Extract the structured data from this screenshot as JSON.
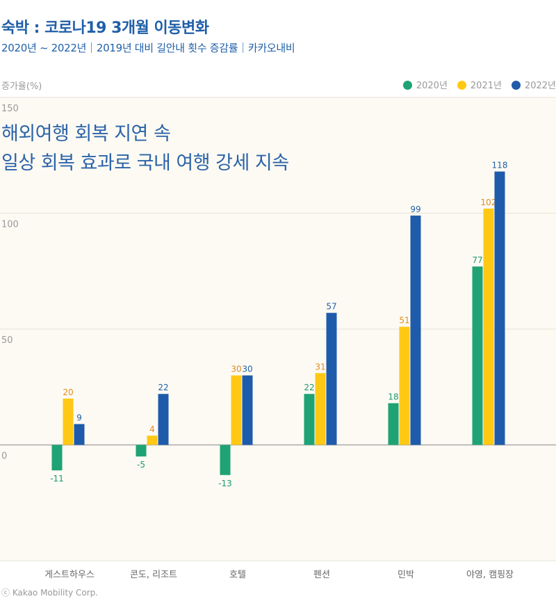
{
  "header": {
    "title": "숙박 : 코로나19 3개월 이동변화",
    "subtitle": "2020년 ~ 2022년｜2019년 대비 길안내 횟수 증감률｜카카오내비"
  },
  "annotation": {
    "line1": "해외여행 회복 지연 속",
    "line2": "일상 회복 효과로 국내 여행 강세 지속"
  },
  "footer": {
    "copyright": "ⓒ Kakao Mobility Corp."
  },
  "chart_data": {
    "type": "bar",
    "ylabel": "증가율(%)",
    "ylim": [
      -50,
      150
    ],
    "yticks": [
      150,
      100,
      50,
      0
    ],
    "grid": true,
    "legend_position": "top-right",
    "categories": [
      "게스트하우스",
      "콘도, 리조트",
      "호텔",
      "펜션",
      "민박",
      "야영, 캠핑장"
    ],
    "series": [
      {
        "name": "2020년",
        "color": "#1fa374",
        "label_color": "#1a9a6a",
        "values": [
          -11,
          -5,
          -13,
          22,
          18,
          77
        ]
      },
      {
        "name": "2021년",
        "color": "#ffc814",
        "label_color": "#e4891c",
        "values": [
          20,
          4,
          30,
          31,
          51,
          102
        ]
      },
      {
        "name": "2022년",
        "color": "#1f5bab",
        "label_color": "#1f5fa8",
        "values": [
          9,
          22,
          30,
          57,
          99,
          118
        ]
      }
    ]
  }
}
